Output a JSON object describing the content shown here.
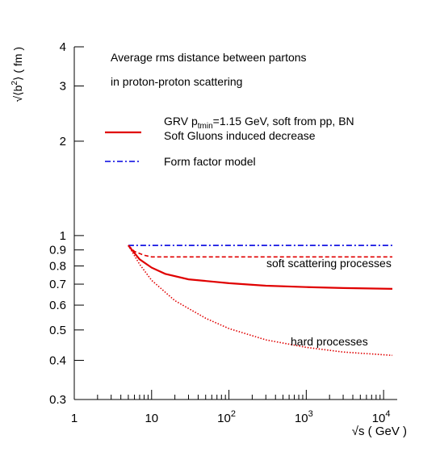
{
  "chart_data": {
    "type": "line",
    "x_scale": "log",
    "y_scale": "log",
    "xlim": [
      1,
      15000
    ],
    "ylim": [
      0.3,
      4
    ],
    "xlabel": "√s ( GeV )",
    "ylabel": {
      "prefix": "√⟨b",
      "sup": "2",
      "suffix": "⟩ ( fm )"
    },
    "x_ticks": [
      {
        "value": 1,
        "base": "1",
        "exp": ""
      },
      {
        "value": 10,
        "base": "10",
        "exp": ""
      },
      {
        "value": 100,
        "base": "10",
        "exp": "2"
      },
      {
        "value": 1000,
        "base": "10",
        "exp": "3"
      },
      {
        "value": 10000,
        "base": "10",
        "exp": "4"
      }
    ],
    "y_ticks": [
      {
        "value": 0.3,
        "label": "0.3"
      },
      {
        "value": 0.4,
        "label": "0.4"
      },
      {
        "value": 0.5,
        "label": "0.5"
      },
      {
        "value": 0.6,
        "label": "0.6"
      },
      {
        "value": 0.7,
        "label": "0.7"
      },
      {
        "value": 0.8,
        "label": "0.8"
      },
      {
        "value": 0.9,
        "label": "0.9"
      },
      {
        "value": 1,
        "label": "1"
      },
      {
        "value": 2,
        "label": "2"
      },
      {
        "value": 3,
        "label": "3"
      },
      {
        "value": 4,
        "label": "4"
      }
    ],
    "annotations": {
      "title_line1": "Average rms distance between partons",
      "title_line2": "in proton-proton scattering",
      "soft_label": "soft scattering processes",
      "hard_label": "hard processes"
    },
    "legend": [
      {
        "style": "solid",
        "color": "#e00000",
        "main": "GRV p",
        "sub": "tmin",
        "rest": "=1.15 GeV, soft from pp, BN"
      },
      {
        "style": "none",
        "color": "#e00000",
        "main": "Soft Gluons induced  decrease",
        "sub": "",
        "rest": ""
      },
      {
        "style": "dashdot",
        "color": "#0000e0",
        "main": "Form factor model",
        "sub": "",
        "rest": ""
      }
    ],
    "series": [
      {
        "style": "dashdot",
        "color": "#0000e0",
        "points": [
          [
            5,
            0.93
          ],
          [
            13000,
            0.93
          ]
        ]
      },
      {
        "style": "dashed",
        "color": "#e00000",
        "points": [
          [
            5,
            0.93
          ],
          [
            6,
            0.89
          ],
          [
            8,
            0.865
          ],
          [
            10,
            0.855
          ],
          [
            15,
            0.855
          ],
          [
            50,
            0.855
          ],
          [
            1000,
            0.855
          ],
          [
            13000,
            0.855
          ]
        ]
      },
      {
        "style": "solid",
        "color": "#e00000",
        "points": [
          [
            5,
            0.93
          ],
          [
            7,
            0.84
          ],
          [
            10,
            0.79
          ],
          [
            15,
            0.755
          ],
          [
            30,
            0.725
          ],
          [
            100,
            0.705
          ],
          [
            300,
            0.692
          ],
          [
            1000,
            0.685
          ],
          [
            3000,
            0.68
          ],
          [
            13000,
            0.676
          ]
        ]
      },
      {
        "style": "dotted",
        "color": "#e00000",
        "points": [
          [
            5,
            0.93
          ],
          [
            7,
            0.81
          ],
          [
            10,
            0.72
          ],
          [
            20,
            0.62
          ],
          [
            50,
            0.545
          ],
          [
            100,
            0.505
          ],
          [
            300,
            0.465
          ],
          [
            1000,
            0.44
          ],
          [
            3000,
            0.425
          ],
          [
            13000,
            0.415
          ]
        ]
      }
    ]
  }
}
